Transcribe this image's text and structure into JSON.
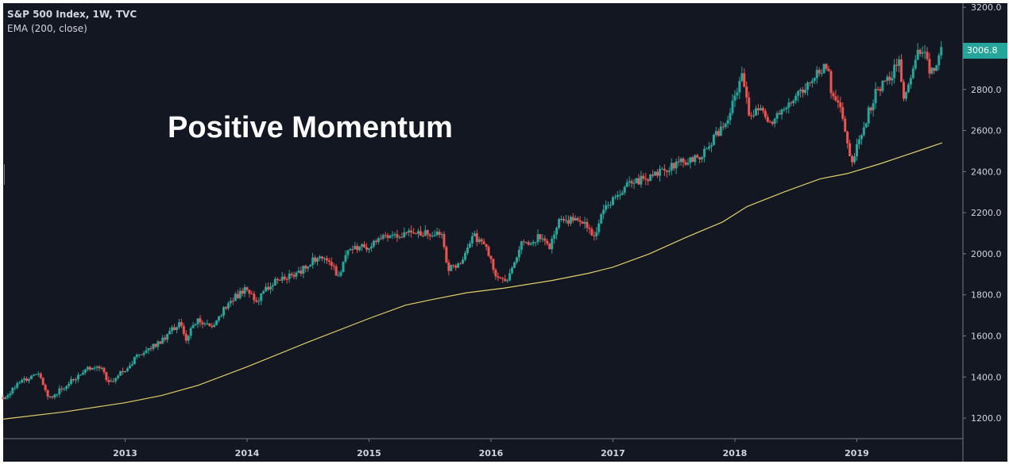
{
  "chart_data": {
    "type": "candlestick",
    "symbol_title": "S&P 500 Index, 1W, TVC",
    "indicator_label": "EMA (200, close)",
    "annotation": "Positive Momentum",
    "last_price_label": "3006.8",
    "last_price": 3006.8,
    "y_axis": {
      "ylim": [
        1100,
        3220
      ],
      "ticks": [
        1200,
        1400,
        1600,
        1800,
        2000,
        2200,
        2400,
        2600,
        2800,
        3000,
        3200
      ],
      "tick_labels": [
        "1200.0",
        "1400.0",
        "1600.0",
        "1800.0",
        "2000.0",
        "2200.0",
        "2400.0",
        "2600.0",
        "2800.0",
        "3000.0",
        "3200.0"
      ]
    },
    "x_axis": {
      "xlim": [
        2012.0,
        2019.87
      ],
      "ticks": [
        2013,
        2014,
        2015,
        2016,
        2017,
        2018,
        2019
      ],
      "tick_labels": [
        "2013",
        "2014",
        "2015",
        "2016",
        "2017",
        "2018",
        "2019"
      ]
    },
    "grid": false,
    "price_path": [
      [
        2012.0,
        1300
      ],
      [
        2012.15,
        1380
      ],
      [
        2012.3,
        1410
      ],
      [
        2012.37,
        1290
      ],
      [
        2012.45,
        1330
      ],
      [
        2012.6,
        1400
      ],
      [
        2012.7,
        1450
      ],
      [
        2012.8,
        1440
      ],
      [
        2012.87,
        1370
      ],
      [
        2012.95,
        1410
      ],
      [
        2013.1,
        1500
      ],
      [
        2013.3,
        1580
      ],
      [
        2013.4,
        1640
      ],
      [
        2013.45,
        1660
      ],
      [
        2013.5,
        1590
      ],
      [
        2013.6,
        1680
      ],
      [
        2013.7,
        1640
      ],
      [
        2013.8,
        1720
      ],
      [
        2013.9,
        1790
      ],
      [
        2014.0,
        1830
      ],
      [
        2014.07,
        1760
      ],
      [
        2014.2,
        1860
      ],
      [
        2014.4,
        1900
      ],
      [
        2014.55,
        1970
      ],
      [
        2014.65,
        1980
      ],
      [
        2014.75,
        1890
      ],
      [
        2014.82,
        2010
      ],
      [
        2015.0,
        2040
      ],
      [
        2015.1,
        2080
      ],
      [
        2015.3,
        2100
      ],
      [
        2015.5,
        2100
      ],
      [
        2015.6,
        2090
      ],
      [
        2015.65,
        1920
      ],
      [
        2015.75,
        1960
      ],
      [
        2015.85,
        2090
      ],
      [
        2015.95,
        2050
      ],
      [
        2016.05,
        1880
      ],
      [
        2016.12,
        1860
      ],
      [
        2016.25,
        2050
      ],
      [
        2016.4,
        2080
      ],
      [
        2016.48,
        2030
      ],
      [
        2016.55,
        2160
      ],
      [
        2016.7,
        2170
      ],
      [
        2016.8,
        2130
      ],
      [
        2016.85,
        2090
      ],
      [
        2016.92,
        2200
      ],
      [
        2017.0,
        2260
      ],
      [
        2017.15,
        2350
      ],
      [
        2017.3,
        2370
      ],
      [
        2017.5,
        2430
      ],
      [
        2017.7,
        2470
      ],
      [
        2017.85,
        2580
      ],
      [
        2017.95,
        2680
      ],
      [
        2018.06,
        2860
      ],
      [
        2018.12,
        2680
      ],
      [
        2018.2,
        2700
      ],
      [
        2018.3,
        2650
      ],
      [
        2018.4,
        2720
      ],
      [
        2018.55,
        2800
      ],
      [
        2018.7,
        2890
      ],
      [
        2018.76,
        2920
      ],
      [
        2018.8,
        2760
      ],
      [
        2018.88,
        2690
      ],
      [
        2018.96,
        2420
      ],
      [
        2019.0,
        2530
      ],
      [
        2019.15,
        2780
      ],
      [
        2019.25,
        2850
      ],
      [
        2019.35,
        2930
      ],
      [
        2019.38,
        2750
      ],
      [
        2019.47,
        2940
      ],
      [
        2019.55,
        3010
      ],
      [
        2019.6,
        2870
      ],
      [
        2019.65,
        2900
      ],
      [
        2019.7,
        3006.8
      ]
    ],
    "ema_path": [
      [
        2012.0,
        1195
      ],
      [
        2012.5,
        1230
      ],
      [
        2013.0,
        1275
      ],
      [
        2013.3,
        1310
      ],
      [
        2013.6,
        1360
      ],
      [
        2014.0,
        1450
      ],
      [
        2014.5,
        1570
      ],
      [
        2015.0,
        1685
      ],
      [
        2015.3,
        1750
      ],
      [
        2015.5,
        1775
      ],
      [
        2015.8,
        1810
      ],
      [
        2016.1,
        1832
      ],
      [
        2016.5,
        1870
      ],
      [
        2016.8,
        1905
      ],
      [
        2017.0,
        1935
      ],
      [
        2017.3,
        2000
      ],
      [
        2017.6,
        2080
      ],
      [
        2017.9,
        2155
      ],
      [
        2018.1,
        2230
      ],
      [
        2018.4,
        2300
      ],
      [
        2018.7,
        2365
      ],
      [
        2018.92,
        2390
      ],
      [
        2019.2,
        2440
      ],
      [
        2019.5,
        2500
      ],
      [
        2019.7,
        2540
      ]
    ],
    "colors": {
      "background": "#131722",
      "up": "#26a69a",
      "down": "#ef5350",
      "ema": "#e0cf6a",
      "axis_text": "#d1d4dc",
      "axis_line": "#787b86",
      "badge": "#26a69a"
    }
  }
}
